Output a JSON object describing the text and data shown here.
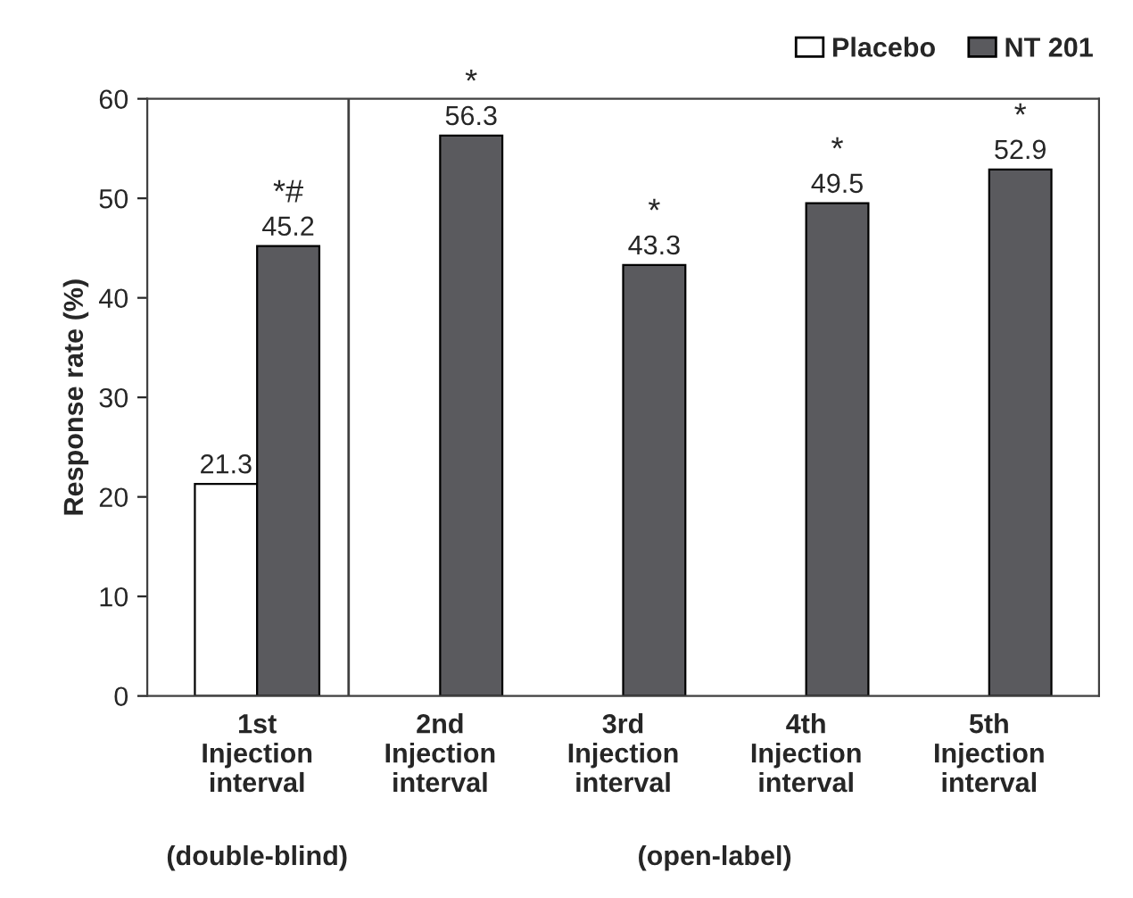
{
  "chart_data": {
    "type": "bar",
    "categories": [
      "1st\nInjection\ninterval",
      "2nd\nInjection\ninterval",
      "3rd\nInjection\ninterval",
      "4th\nInjection\ninterval",
      "5th\nInjection\ninterval"
    ],
    "series": [
      {
        "name": "Placebo",
        "color": "#ffffff",
        "values": [
          21.3,
          null,
          null,
          null,
          null
        ]
      },
      {
        "name": "NT 201",
        "color": "#5a5a5e",
        "values": [
          45.2,
          56.3,
          43.3,
          49.5,
          52.9
        ]
      }
    ],
    "ylabel": "Response rate (%)",
    "ylim": [
      0,
      60
    ],
    "yticks": [
      0,
      10,
      20,
      30,
      40,
      50,
      60
    ],
    "data_labels": true,
    "grid": false,
    "legend": "top right",
    "annotations": [
      "*#",
      "*",
      "*",
      "*",
      "*",
      "(double-blind)",
      "(open-label)"
    ]
  }
}
